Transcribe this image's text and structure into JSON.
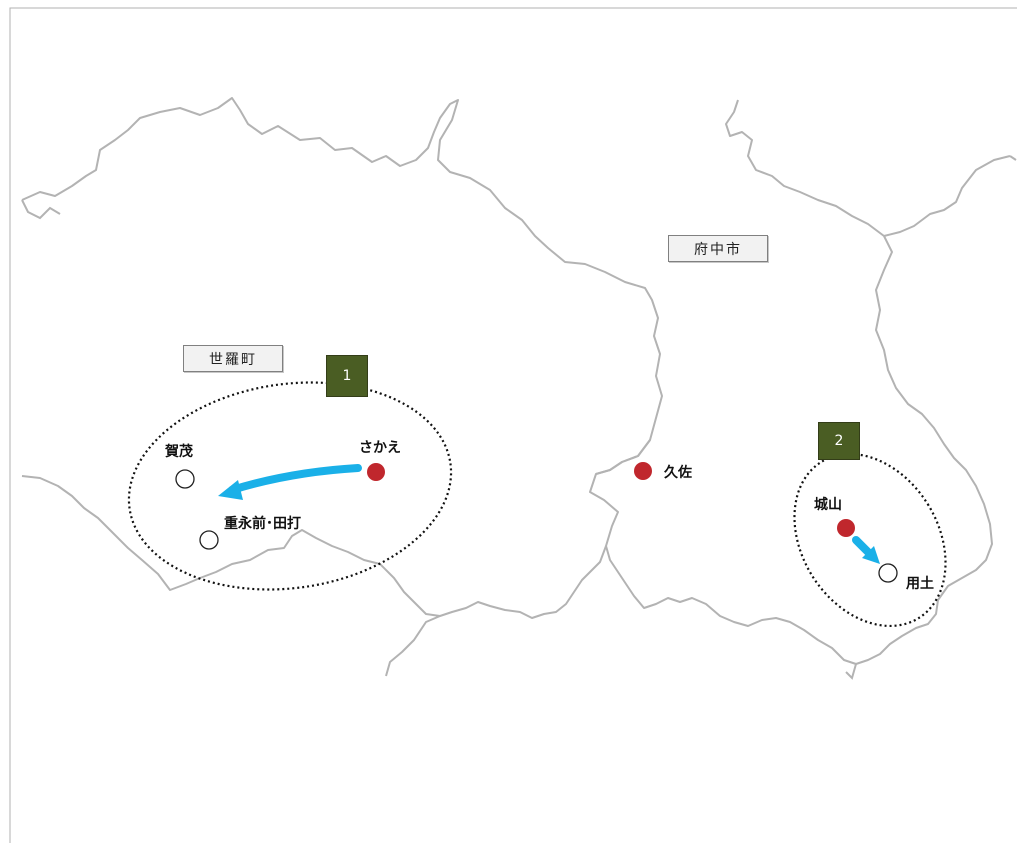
{
  "colors": {
    "border": "#b3b3b3",
    "existing_stop": "#c0272d",
    "new_stop_fill": "#ffffff",
    "arrow": "#1ab0e8",
    "badge": "#4a5d23"
  },
  "regions": {
    "sera": "世羅町",
    "fuchu": "府中市"
  },
  "areas": [
    {
      "number": "1"
    },
    {
      "number": "2"
    }
  ],
  "places": {
    "sakae": "さかえ",
    "kamo": "賀茂",
    "shigenaga": "重永前･田打",
    "kusa": "久佐",
    "shiroyama": "城山",
    "yodo": "用土"
  }
}
